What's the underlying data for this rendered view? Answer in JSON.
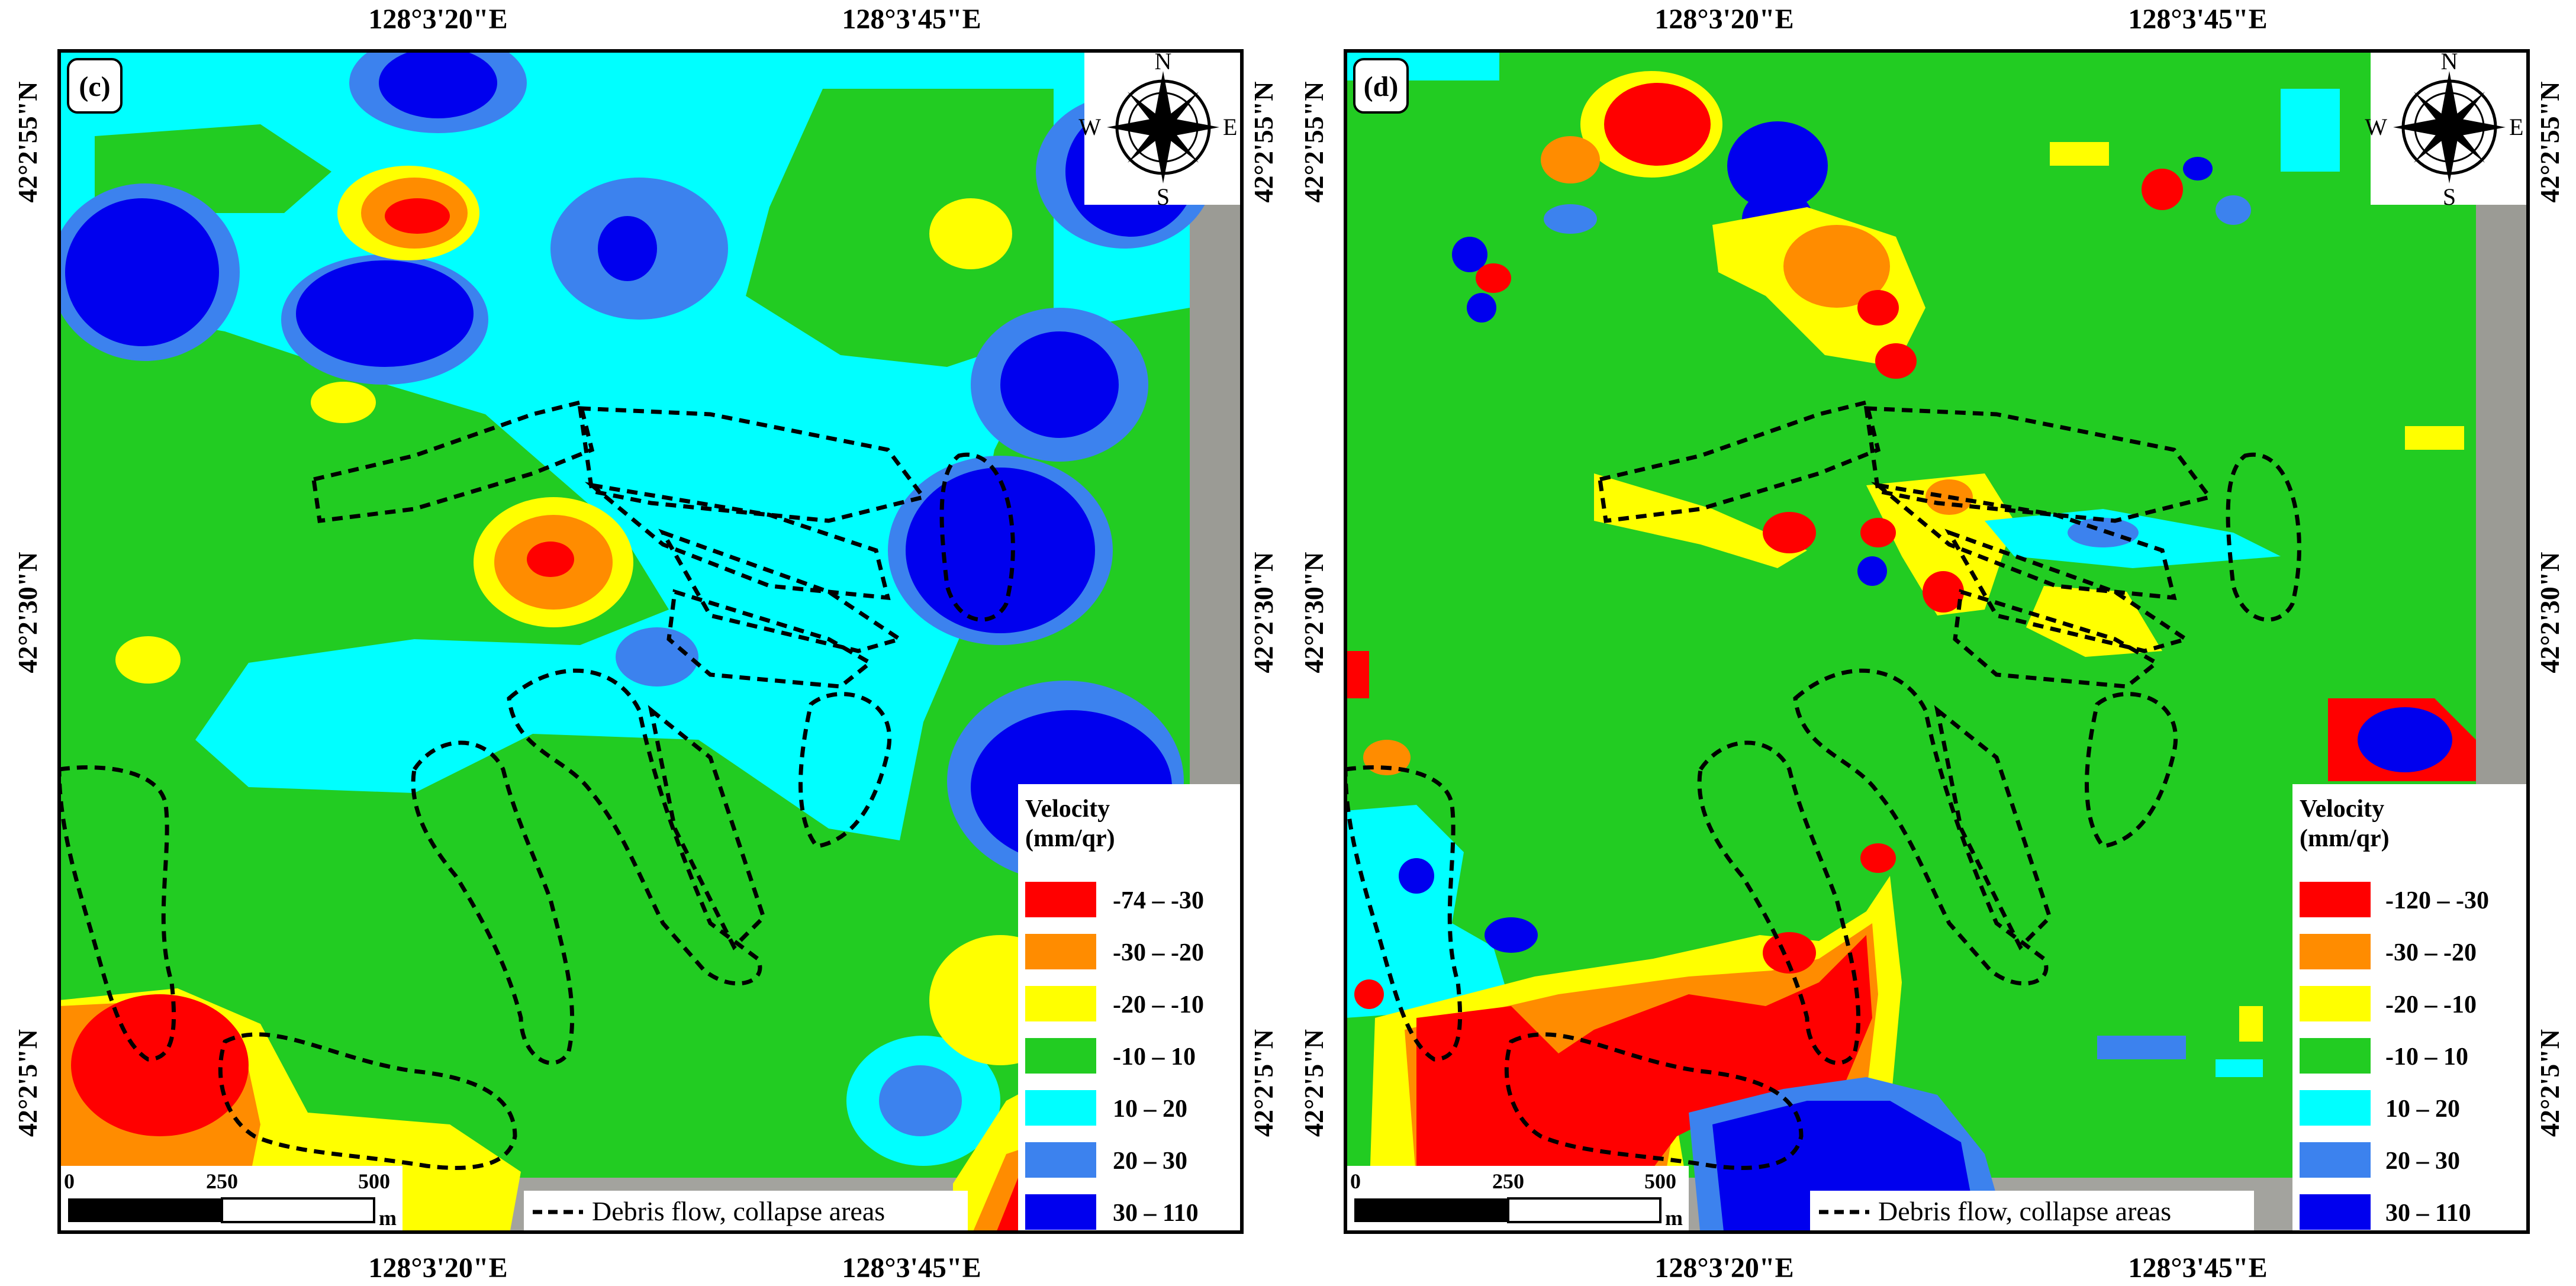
{
  "colors": {
    "c1": "#ff0000",
    "c2": "#ff8c00",
    "c3": "#ffff00",
    "c4": "#22cc22",
    "c5": "#00ffff",
    "c6": "#3c82ee",
    "c7": "#0000ee",
    "imagery": "#9b9b95"
  },
  "panels": [
    {
      "label": "(c)",
      "lon_labels": [
        "128°3'20\"E",
        "128°3'45\"E"
      ],
      "lat_labels": [
        "42°2'55\"N",
        "42°2'30\"N",
        "42°2'5\"N"
      ],
      "compass": {
        "n": "N",
        "s": "S",
        "e": "E",
        "w": "W"
      },
      "legend": {
        "title_line1": "Velocity",
        "title_line2": "(mm/qr)",
        "classes": [
          "-74 – -30",
          "-30 – -20",
          "-20 – -10",
          "-10 – 10",
          "10 – 20",
          "20 – 30",
          "30 – 110"
        ]
      },
      "scalebar": {
        "ticks": [
          "0",
          "250",
          "500"
        ],
        "unit": "m"
      },
      "dash_legend": "Debris flow, collapse areas"
    },
    {
      "label": "(d)",
      "lon_labels": [
        "128°3'20\"E",
        "128°3'45\"E"
      ],
      "lat_labels": [
        "42°2'55\"N",
        "42°2'30\"N",
        "42°2'5\"N"
      ],
      "compass": {
        "n": "N",
        "s": "S",
        "e": "E",
        "w": "W"
      },
      "legend": {
        "title_line1": "Velocity",
        "title_line2": "(mm/qr)",
        "classes": [
          "-120 – -30",
          "-30 – -20",
          "-20 – -10",
          "-10 – 10",
          "10 – 20",
          "20 – 30",
          "30 – 110"
        ]
      },
      "scalebar": {
        "ticks": [
          "0",
          "250",
          "500"
        ],
        "unit": "m"
      },
      "dash_legend": "Debris flow, collapse areas"
    }
  ]
}
